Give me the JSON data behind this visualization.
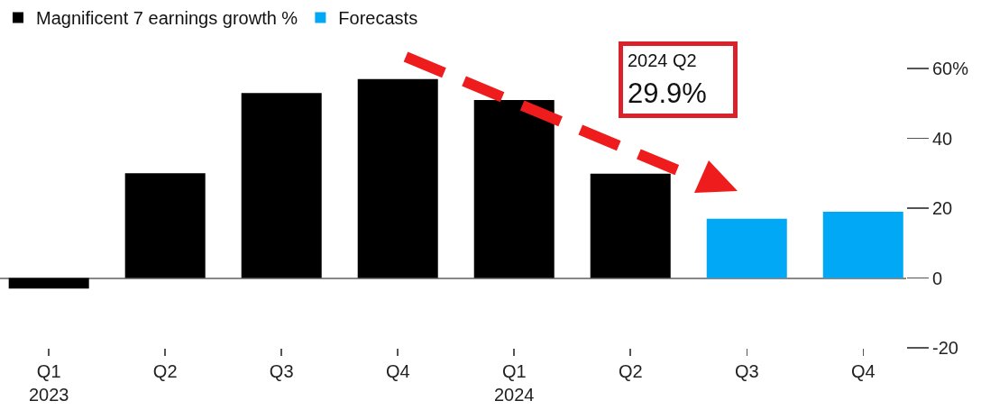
{
  "chart_data": {
    "type": "bar",
    "categories": [
      "Q1\n2023",
      "Q2",
      "Q3",
      "Q4",
      "Q1\n2024",
      "Q2",
      "Q3",
      "Q4"
    ],
    "series": [
      {
        "name": "Magnificent 7 earnings growth %",
        "color": "#000000",
        "values": [
          -3,
          30,
          53,
          57,
          51,
          29.9,
          null,
          null
        ]
      },
      {
        "name": "Forecasts",
        "color": "#00a8f5",
        "values": [
          null,
          null,
          null,
          null,
          null,
          null,
          17,
          19
        ]
      }
    ],
    "ylim": [
      -20,
      60
    ],
    "yticks": [
      -20,
      0,
      20,
      40,
      {
        "value": 60,
        "label": "60%"
      }
    ],
    "legend": "top left",
    "annotations": [
      "2024 Q2\n29.9%"
    ]
  }
}
